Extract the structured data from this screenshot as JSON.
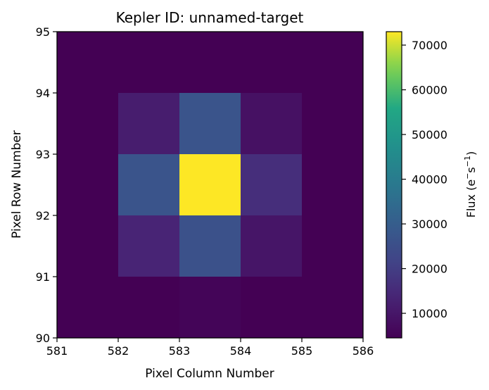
{
  "chart_data": {
    "type": "heatmap",
    "title": "Kepler ID: unnamed-target",
    "xlabel": "Pixel Column Number",
    "ylabel": "Pixel Row Number",
    "x_ticks": [
      "581",
      "582",
      "583",
      "584",
      "585",
      "586"
    ],
    "y_ticks": [
      "90",
      "91",
      "92",
      "93",
      "94",
      "95"
    ],
    "x_range": [
      581,
      586
    ],
    "y_range": [
      90,
      95
    ],
    "colorbar": {
      "label_main": "Flux (e",
      "label_sup1": "−",
      "label_mid": "s",
      "label_sup2": "−1",
      "label_end": ")",
      "range": [
        4500,
        73000
      ],
      "ticks": [
        "10000",
        "20000",
        "30000",
        "40000",
        "50000",
        "60000",
        "70000"
      ],
      "tick_values": [
        10000,
        20000,
        30000,
        40000,
        50000,
        60000,
        70000
      ]
    },
    "rows_top_to_bottom": [
      [
        4500,
        4500,
        4500,
        4500,
        4500
      ],
      [
        4500,
        11500,
        27000,
        8500,
        4500
      ],
      [
        4500,
        27000,
        73000,
        16000,
        4500
      ],
      [
        4500,
        13500,
        26000,
        9500,
        4500
      ],
      [
        4500,
        4500,
        5500,
        4500,
        4500
      ]
    ],
    "colormap": "viridis"
  }
}
